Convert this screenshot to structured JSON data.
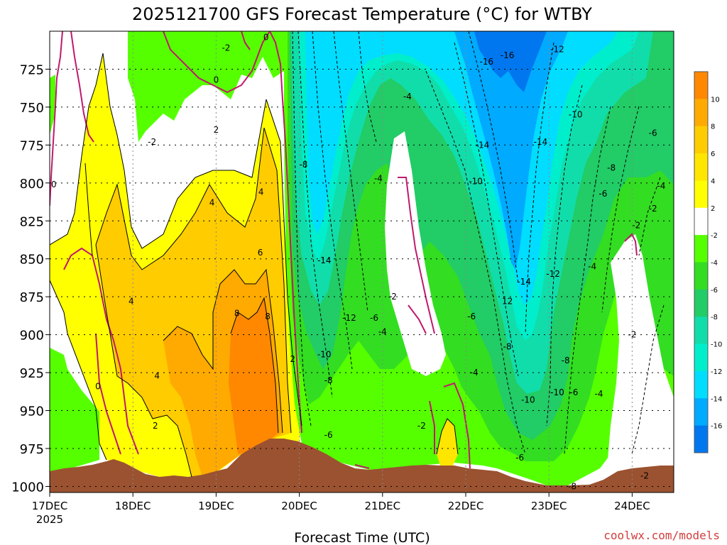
{
  "title": "2025121700 GFS Forecast Temperature (°C) for WTBY",
  "credit": "coolwx.com/models",
  "chart_data": {
    "type": "heatmap",
    "title": "2025121700 GFS Forecast Temperature (°C) for WTBY",
    "xlabel": "Forecast Time (UTC)",
    "ylabel": "",
    "x_ticks": [
      "17DEC",
      "18DEC",
      "19DEC",
      "20DEC",
      "21DEC",
      "22DEC",
      "23DEC",
      "24DEC"
    ],
    "x_tick_sub": "2025",
    "y_ticks": [
      725,
      750,
      775,
      800,
      825,
      850,
      875,
      900,
      925,
      950,
      975,
      1000
    ],
    "ylim": [
      1004,
      700
    ],
    "xlim": [
      0,
      7.5
    ],
    "grid": true,
    "colorbar": {
      "levels": [
        "10",
        "8",
        "6",
        "4",
        "2",
        "-2",
        "-4",
        "-6",
        "-8",
        "-10",
        "-12",
        "-14",
        "-16"
      ],
      "colors": [
        "#ff8800",
        "#ffaa00",
        "#ffcc00",
        "#ffe600",
        "#ffff00",
        "#ffffff",
        "#55ff00",
        "#33dd22",
        "#22cc66",
        "#11ddaa",
        "#00eecc",
        "#00ddff",
        "#00aaff",
        "#0077ee"
      ]
    },
    "contour_labels": [
      {
        "x": 0.05,
        "p": 801,
        "text": "0"
      },
      {
        "x": 0.58,
        "p": 934,
        "text": "0"
      },
      {
        "x": 1.23,
        "p": 773,
        "text": "-2"
      },
      {
        "x": 0.98,
        "p": 878,
        "text": "4"
      },
      {
        "x": 1.29,
        "p": 927,
        "text": "4"
      },
      {
        "x": 1.27,
        "p": 960,
        "text": "2"
      },
      {
        "x": 1.95,
        "p": 813,
        "text": "4"
      },
      {
        "x": 2.0,
        "p": 765,
        "text": "2"
      },
      {
        "x": 2.0,
        "p": 732,
        "text": "0"
      },
      {
        "x": 2.12,
        "p": 711,
        "text": "-2"
      },
      {
        "x": 2.6,
        "p": 704,
        "text": "0"
      },
      {
        "x": 2.54,
        "p": 806,
        "text": "4"
      },
      {
        "x": 2.53,
        "p": 846,
        "text": "6"
      },
      {
        "x": 2.25,
        "p": 886,
        "text": "8"
      },
      {
        "x": 2.62,
        "p": 888,
        "text": "8"
      },
      {
        "x": 2.92,
        "p": 916,
        "text": "2"
      },
      {
        "x": 3.05,
        "p": 788,
        "text": "-8"
      },
      {
        "x": 3.3,
        "p": 851,
        "text": "-14"
      },
      {
        "x": 3.3,
        "p": 913,
        "text": "-10"
      },
      {
        "x": 3.35,
        "p": 930,
        "text": "-8"
      },
      {
        "x": 3.6,
        "p": 889,
        "text": "-12"
      },
      {
        "x": 3.9,
        "p": 889,
        "text": "-6"
      },
      {
        "x": 3.95,
        "p": 797,
        "text": "-4"
      },
      {
        "x": 4.0,
        "p": 898,
        "text": "-4"
      },
      {
        "x": 3.35,
        "p": 966,
        "text": "-6"
      },
      {
        "x": 4.12,
        "p": 875,
        "text": "-2"
      },
      {
        "x": 4.3,
        "p": 743,
        "text": "-4"
      },
      {
        "x": 4.47,
        "p": 960,
        "text": "-2"
      },
      {
        "x": 5.12,
        "p": 799,
        "text": "-10"
      },
      {
        "x": 5.07,
        "p": 888,
        "text": "-6"
      },
      {
        "x": 5.1,
        "p": 925,
        "text": "-4"
      },
      {
        "x": 5.2,
        "p": 775,
        "text": "-14"
      },
      {
        "x": 5.25,
        "p": 720,
        "text": "-16"
      },
      {
        "x": 5.5,
        "p": 716,
        "text": "-16"
      },
      {
        "x": 5.5,
        "p": 908,
        "text": "-8"
      },
      {
        "x": 5.5,
        "p": 878,
        "text": "12"
      },
      {
        "x": 5.65,
        "p": 981,
        "text": "-6"
      },
      {
        "x": 5.75,
        "p": 943,
        "text": "-10"
      },
      {
        "x": 5.9,
        "p": 773,
        "text": "-14"
      },
      {
        "x": 6.05,
        "p": 860,
        "text": "-12"
      },
      {
        "x": 5.7,
        "p": 865,
        "text": "-14"
      },
      {
        "x": 6.1,
        "p": 712,
        "text": "-12"
      },
      {
        "x": 6.1,
        "p": 938,
        "text": "-10"
      },
      {
        "x": 6.3,
        "p": 938,
        "text": "-6"
      },
      {
        "x": 6.2,
        "p": 917,
        "text": "-8"
      },
      {
        "x": 6.28,
        "p": 1000,
        "text": "-8"
      },
      {
        "x": 6.32,
        "p": 755,
        "text": "-10"
      },
      {
        "x": 6.75,
        "p": 790,
        "text": "-8"
      },
      {
        "x": 6.65,
        "p": 807,
        "text": "-6"
      },
      {
        "x": 6.52,
        "p": 855,
        "text": "-4"
      },
      {
        "x": 6.6,
        "p": 939,
        "text": "-4"
      },
      {
        "x": 7.05,
        "p": 828,
        "text": "-2"
      },
      {
        "x": 7.0,
        "p": 900,
        "text": "-2"
      },
      {
        "x": 7.15,
        "p": 993,
        "text": "-2"
      },
      {
        "x": 7.25,
        "p": 767,
        "text": "-6"
      },
      {
        "x": 7.25,
        "p": 817,
        "text": "-2"
      },
      {
        "x": 7.35,
        "p": 802,
        "text": "-4"
      }
    ]
  }
}
